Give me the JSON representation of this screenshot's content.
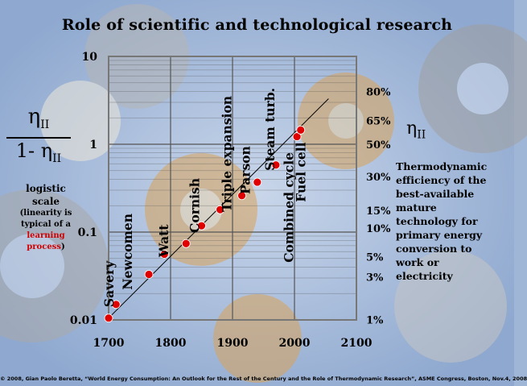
{
  "slide": {
    "title": "Role of scientific and technological research",
    "footer": "© 2008, Gian Paolo Beretta, “World Energy Consumption: An Outlook for the Rest of the Century and the Role of Thermodynamic Research”, ASME Congress, Boston, Nov.4, 2008",
    "left_axis_label": {
      "eta": "η",
      "sub": "II",
      "den_prefix": "1- η",
      "scale_line1": "logistic",
      "scale_line2": "scale",
      "note_line1": "(linearity is",
      "note_line2": "typical of a",
      "note_red1": "learning",
      "note_red2": "process",
      "note_close": ")"
    },
    "right_axis_label": {
      "eta": "η",
      "sub": "II",
      "description": [
        "Thermodynamic",
        "efficiency of the",
        "best-available",
        "mature",
        "technology for",
        "primary energy",
        "conversion to",
        "work or",
        "electricity"
      ]
    }
  },
  "chart_data": {
    "type": "scatter",
    "x_ticks": [
      1700,
      1800,
      1900,
      2000,
      2100
    ],
    "x_tick_labels": [
      "1700",
      "1800",
      "1900",
      "2000",
      "2100"
    ],
    "xlim": [
      1700,
      2100
    ],
    "ylim": [
      0.01,
      10
    ],
    "y_scale": "log",
    "y_tick_labels": [
      {
        "value": 10,
        "label": "10"
      },
      {
        "value": 1,
        "label": "1"
      },
      {
        "value": 0.1,
        "label": "0.1"
      },
      {
        "value": 0.01,
        "label": "0.01"
      }
    ],
    "right_ticks": [
      {
        "eta": 0.8,
        "label": "80%"
      },
      {
        "eta": 0.65,
        "label": "65%"
      },
      {
        "eta": 0.5,
        "label": "50%"
      },
      {
        "eta": 0.3,
        "label": "30%"
      },
      {
        "eta": 0.15,
        "label": "15%"
      },
      {
        "eta": 0.1,
        "label": "10%"
      },
      {
        "eta": 0.05,
        "label": "5%"
      },
      {
        "eta": 0.03,
        "label": "3%"
      },
      {
        "eta": 0.01,
        "label": "1%"
      }
    ],
    "grid": true,
    "points": [
      {
        "x": 1700,
        "y": 0.0105
      },
      {
        "x": 1712,
        "y": 0.015
      },
      {
        "x": 1765,
        "y": 0.033
      },
      {
        "x": 1790,
        "y": 0.056
      },
      {
        "x": 1825,
        "y": 0.074
      },
      {
        "x": 1850,
        "y": 0.118
      },
      {
        "x": 1880,
        "y": 0.18
      },
      {
        "x": 1915,
        "y": 0.26
      },
      {
        "x": 1940,
        "y": 0.37
      },
      {
        "x": 1970,
        "y": 0.58
      },
      {
        "x": 2004,
        "y": 1.22
      },
      {
        "x": 2010,
        "y": 1.45
      }
    ],
    "trend_line": {
      "from": [
        1700,
        0.0105
      ],
      "to": [
        2055,
        3.3
      ]
    },
    "annotations": [
      {
        "label": "Savery",
        "x": 1700,
        "y": 0.014
      },
      {
        "label": "Newcomen",
        "x": 1730,
        "y": 0.022
      },
      {
        "label": "Watt",
        "x": 1788,
        "y": 0.052
      },
      {
        "label": "Cornish",
        "x": 1838,
        "y": 0.098
      },
      {
        "label": "Triple expansion",
        "x": 1890,
        "y": 0.17
      },
      {
        "label": "Parson",
        "x": 1920,
        "y": 0.27
      },
      {
        "label": "Steam turb.",
        "x": 1960,
        "y": 0.5
      },
      {
        "label": "Combined cycle",
        "x": 1990,
        "y": 0.045
      },
      {
        "label": "Fuel cell",
        "x": 2010,
        "y": 0.22
      }
    ]
  },
  "colors": {
    "point": "#e00000",
    "grid": "#555555",
    "frame": "#777777",
    "trend": "#000000"
  }
}
